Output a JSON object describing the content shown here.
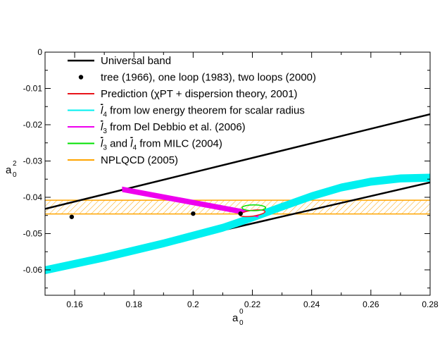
{
  "chart_data": {
    "type": "line",
    "xlabel": "a0^0",
    "ylabel": "a0^2",
    "axis_labels": {
      "x_main": "a",
      "x_sub": "0",
      "x_sup": "0",
      "y_main": "a",
      "y_sub": "0",
      "y_sup": "2"
    },
    "xlim": [
      0.15,
      0.28
    ],
    "ylim": [
      -0.067,
      0.0
    ],
    "x_ticks": [
      0.16,
      0.18,
      0.2,
      0.22,
      0.24,
      0.26,
      0.28
    ],
    "x_tick_labels": [
      "0.16",
      "0.18",
      "0.2",
      "0.22",
      "0.24",
      "0.26",
      "0.28"
    ],
    "y_ticks": [
      0,
      -0.01,
      -0.02,
      -0.03,
      -0.04,
      -0.05,
      -0.06
    ],
    "y_tick_labels": [
      "0",
      "-0.01",
      "-0.02",
      "-0.03",
      "-0.04",
      "-0.05",
      "-0.06"
    ],
    "legend": [
      {
        "key": "universal",
        "label": "Universal band",
        "color": "#000000",
        "marker": "line"
      },
      {
        "key": "tree",
        "label": "tree (1966), one loop (1983), two loops (2000)",
        "color": "#000000",
        "marker": "dot"
      },
      {
        "key": "prediction",
        "label": "Prediction (χPT + dispersion theory, 2001)",
        "color": "#e8141a",
        "marker": "line"
      },
      {
        "key": "l4",
        "label": "from low energy theorem for scalar radius",
        "symbol": "l",
        "symbol_sub": "4",
        "color": "#00f0f0",
        "marker": "line"
      },
      {
        "key": "l3",
        "label": "from Del Debbio et al. (2006)",
        "symbol": "l",
        "symbol_sub": "3",
        "color": "#ee00ee",
        "marker": "line"
      },
      {
        "key": "milc",
        "label": "from MILC (2004)",
        "prefix_symbol": "l",
        "prefix_sub": "3",
        "connector": "and",
        "symbol": "l",
        "symbol_sub": "4",
        "color": "#00e000",
        "marker": "line"
      },
      {
        "key": "npl",
        "label": "NPLQCD (2005)",
        "color": "#ffa500",
        "marker": "line"
      }
    ],
    "series": [
      {
        "name": "Universal band upper boundary",
        "color": "#000000",
        "points": [
          [
            0.15,
            -0.0432
          ],
          [
            0.28,
            -0.0171
          ]
        ]
      },
      {
        "name": "Universal band lower boundary",
        "color": "#000000",
        "points": [
          [
            0.15,
            -0.0604
          ],
          [
            0.28,
            -0.0359
          ]
        ]
      },
      {
        "name": "Scalar radius band (l4)",
        "color": "#00f0f0",
        "points": [
          [
            0.15,
            -0.0601
          ],
          [
            0.17,
            -0.0566
          ],
          [
            0.19,
            -0.0527
          ],
          [
            0.21,
            -0.0484
          ],
          [
            0.22,
            -0.0456
          ],
          [
            0.23,
            -0.0426
          ],
          [
            0.24,
            -0.0397
          ],
          [
            0.25,
            -0.0373
          ],
          [
            0.26,
            -0.0357
          ],
          [
            0.27,
            -0.0348
          ],
          [
            0.28,
            -0.0346
          ]
        ],
        "half_width": 0.0011
      },
      {
        "name": "Del Debbio band (l3)",
        "color": "#ee00ee",
        "points": [
          [
            0.176,
            -0.0378
          ],
          [
            0.222,
            -0.0448
          ]
        ],
        "half_width": 0.00075
      },
      {
        "name": "NPLQCD band",
        "color": "#ffa500",
        "y_range": [
          -0.0446,
          -0.0408
        ],
        "x_range": [
          0.15,
          0.28
        ],
        "hatched": true
      }
    ],
    "points_tree": [
      {
        "label": "tree (1966)",
        "x": 0.159,
        "y": -0.0454
      },
      {
        "label": "one loop (1983)",
        "x": 0.2,
        "y": -0.0445
      },
      {
        "label": "two loops (2000)",
        "x": 0.216,
        "y": -0.0445
      }
    ],
    "ellipses": [
      {
        "name": "Prediction",
        "color": "#e8141a",
        "cx": 0.22,
        "cy": -0.0444,
        "rx": 0.0043,
        "ry": 0.0008
      },
      {
        "name": "MILC",
        "color": "#00e000",
        "cx": 0.2205,
        "cy": -0.0429,
        "rx": 0.004,
        "ry": 0.0008
      }
    ]
  }
}
